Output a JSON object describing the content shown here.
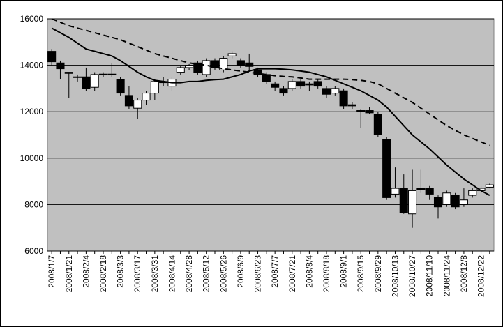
{
  "chart_data": {
    "type": "candlestick",
    "categories": [
      "2008/1/7",
      null,
      "2008/1/21",
      null,
      "2008/2/4",
      null,
      "2008/2/18",
      null,
      "2008/3/3",
      null,
      "2008/3/17",
      null,
      "2008/3/31",
      null,
      "2008/4/14",
      null,
      "2008/4/28",
      null,
      "2008/5/12",
      null,
      "2008/5/26",
      null,
      "2008/6/9",
      null,
      "2008/6/23",
      null,
      "2008/7/7",
      null,
      "2008/7/21",
      null,
      "2008/8/4",
      null,
      "2008/8/18",
      null,
      "2008/9/1",
      null,
      "2008/9/15",
      null,
      "2008/9/29",
      null,
      "2008/10/13",
      null,
      "2008/10/27",
      null,
      "2008/11/10",
      null,
      "2008/11/24",
      null,
      "2008/12/8",
      null,
      "2008/12/22",
      null
    ],
    "open": [
      14600,
      14100,
      13700,
      13500,
      13500,
      13050,
      13600,
      13600,
      13400,
      12700,
      12150,
      12500,
      12800,
      13300,
      13100,
      13700,
      13900,
      14100,
      13600,
      14200,
      13800,
      14400,
      14200,
      14100,
      13800,
      13600,
      13200,
      13000,
      13000,
      13300,
      13200,
      13300,
      13000,
      12800,
      12900,
      12300,
      12050,
      12050,
      11900,
      10800,
      8450,
      8700,
      7600,
      8700,
      8700,
      8300,
      8000,
      8400,
      8000,
      8400,
      8600,
      8750
    ],
    "high": [
      14700,
      14200,
      13700,
      13600,
      13900,
      13700,
      13700,
      14100,
      13500,
      13100,
      12600,
      12900,
      13400,
      13500,
      13500,
      14000,
      14050,
      14200,
      14300,
      14300,
      14400,
      14600,
      14300,
      14500,
      13900,
      13700,
      13300,
      13100,
      13400,
      13400,
      13300,
      13400,
      13100,
      13100,
      13000,
      12400,
      12100,
      12200,
      12000,
      10900,
      9600,
      9300,
      9500,
      9500,
      8800,
      8400,
      8600,
      8500,
      8700,
      8700,
      8800,
      8900
    ],
    "low": [
      14000,
      13400,
      12600,
      13300,
      12900,
      12900,
      13500,
      13500,
      12700,
      12100,
      11700,
      12300,
      12500,
      13100,
      12900,
      13600,
      13800,
      13600,
      13500,
      13800,
      13700,
      14300,
      13900,
      13800,
      13500,
      13200,
      12900,
      12700,
      12900,
      13000,
      12900,
      13000,
      12600,
      12700,
      12100,
      12100,
      11300,
      11900,
      10900,
      8200,
      8300,
      7600,
      7000,
      8500,
      8200,
      7400,
      7900,
      7800,
      7900,
      8300,
      8500,
      8700
    ],
    "close": [
      14150,
      13850,
      13650,
      13500,
      13000,
      13600,
      13620,
      13620,
      12800,
      12250,
      12500,
      12800,
      13300,
      13250,
      13400,
      13900,
      14000,
      13700,
      14200,
      13900,
      14300,
      14500,
      14000,
      13950,
      13600,
      13300,
      13050,
      12800,
      13300,
      13100,
      13150,
      13100,
      12750,
      13000,
      12250,
      12250,
      12000,
      11950,
      11000,
      8300,
      8700,
      7650,
      8600,
      8650,
      8450,
      7900,
      8500,
      7900,
      8200,
      8600,
      8700,
      8850
    ],
    "up_color": "#ffffff",
    "down_color": "#000000",
    "lines": [
      {
        "color": "#000000",
        "dash": false,
        "values": [
          15600,
          15400,
          15200,
          14950,
          14700,
          14600,
          14500,
          14400,
          14200,
          13950,
          13700,
          13500,
          13350,
          13300,
          13250,
          13250,
          13300,
          13300,
          13350,
          13380,
          13400,
          13500,
          13600,
          13750,
          13850,
          13850,
          13850,
          13830,
          13800,
          13750,
          13700,
          13600,
          13500,
          13350,
          13200,
          13050,
          12900,
          12700,
          12500,
          12200,
          11800,
          11400,
          11000,
          10700,
          10400,
          10050,
          9700,
          9400,
          9100,
          8850,
          8600,
          8400
        ]
      },
      {
        "color": "#000000",
        "dash": true,
        "values": [
          16000,
          15850,
          15700,
          15600,
          15500,
          15400,
          15300,
          15200,
          15100,
          14950,
          14800,
          14650,
          14500,
          14400,
          14300,
          14200,
          14100,
          14050,
          14000,
          13920,
          13850,
          13800,
          13750,
          13700,
          13650,
          13600,
          13550,
          13520,
          13500,
          13450,
          13400,
          13400,
          13400,
          13400,
          13400,
          13380,
          13350,
          13300,
          13200,
          13000,
          12800,
          12600,
          12400,
          12150,
          11900,
          11650,
          11400,
          11200,
          11000,
          10850,
          10700,
          10550
        ]
      }
    ],
    "ylim": [
      6000,
      16000
    ],
    "yticks": [
      6000,
      8000,
      10000,
      12000,
      14000,
      16000
    ],
    "grid": true,
    "background": "#c0c0c0"
  }
}
